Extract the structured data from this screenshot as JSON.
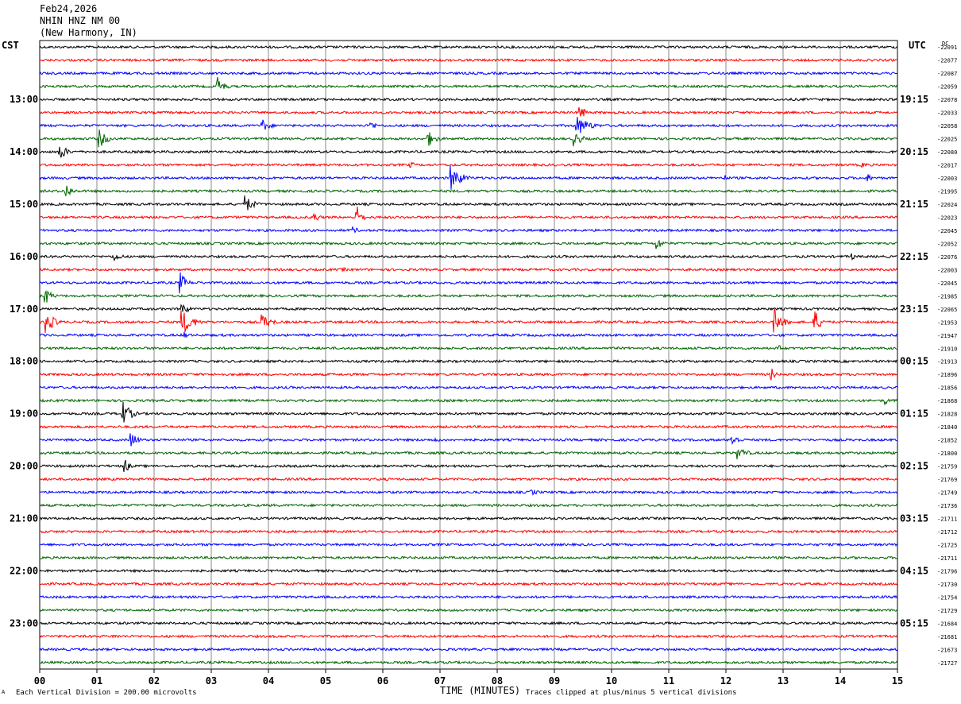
{
  "header": {
    "date": "Feb24,2026",
    "station": "NHIN HNZ NM 00",
    "location": "(New Harmony, IN)"
  },
  "left_tz": "CST",
  "right_tz": "UTC",
  "dc_label": "DC",
  "footer": {
    "scale_prefix": "Each Vertical Division = ",
    "scale_value": "200.00 microvolts",
    "xlabel": "TIME (MINUTES)",
    "clip_note": "Traces clipped at plus/minus 5 vertical divisions",
    "corner_mark": "A"
  },
  "colors": {
    "black": "#000000",
    "red": "#ff0000",
    "blue": "#0000ff",
    "green": "#006400"
  },
  "chart_data": {
    "type": "line",
    "title": "NHIN HNZ NM 00",
    "xlabel": "TIME (MINUTES)",
    "xlim": [
      0,
      15
    ],
    "x_ticks": [
      "00",
      "01",
      "02",
      "03",
      "04",
      "05",
      "06",
      "07",
      "08",
      "09",
      "10",
      "11",
      "12",
      "13",
      "14",
      "15"
    ],
    "trace_count": 48,
    "color_cycle": [
      "black",
      "red",
      "blue",
      "green"
    ],
    "left_hour_labels": [
      "13:00",
      "14:00",
      "15:00",
      "16:00",
      "17:00",
      "18:00",
      "19:00",
      "20:00",
      "21:00",
      "22:00",
      "23:00"
    ],
    "right_hour_labels": [
      "19:15",
      "20:15",
      "21:15",
      "22:15",
      "23:15",
      "00:15",
      "01:15",
      "02:15",
      "03:15",
      "04:15",
      "05:15"
    ],
    "dc_offsets": [
      "-22091",
      "-22077",
      "-22087",
      "-22059",
      "-22078",
      "-22033",
      "-22058",
      "-22025",
      "-22080",
      "-22017",
      "-22003",
      "-21995",
      "-22024",
      "-22023",
      "-22045",
      "-22052",
      "-22076",
      "-22003",
      "-22045",
      "-21985",
      "-22065",
      "-21953",
      "-21947",
      "-21910",
      "-21913",
      "-21896",
      "-21856",
      "-21868",
      "-21828",
      "-21840",
      "-21852",
      "-21800",
      "-21759",
      "-21769",
      "-21749",
      "-21736",
      "-21711",
      "-21712",
      "-21725",
      "-21711",
      "-21796",
      "-21730",
      "-21754",
      "-21729",
      "-21684",
      "-21681",
      "-21673",
      "-21727"
    ],
    "events": [
      {
        "trace": 3,
        "minute": 3.1,
        "amp": 4.0,
        "dur": 0.35
      },
      {
        "trace": 4,
        "minute": 7.0,
        "amp": 1.2,
        "dur": 0.15
      },
      {
        "trace": 5,
        "minute": 9.45,
        "amp": 3.5,
        "dur": 0.25
      },
      {
        "trace": 6,
        "minute": 3.9,
        "amp": 2.5,
        "dur": 0.4
      },
      {
        "trace": 6,
        "minute": 5.8,
        "amp": 1.8,
        "dur": 0.3
      },
      {
        "trace": 6,
        "minute": 9.4,
        "amp": 4.0,
        "dur": 0.6
      },
      {
        "trace": 7,
        "minute": 1.05,
        "amp": 3.5,
        "dur": 0.4
      },
      {
        "trace": 7,
        "minute": 6.8,
        "amp": 3.0,
        "dur": 0.4
      },
      {
        "trace": 7,
        "minute": 9.35,
        "amp": 3.0,
        "dur": 0.4
      },
      {
        "trace": 8,
        "minute": 0.35,
        "amp": 3.5,
        "dur": 0.35
      },
      {
        "trace": 9,
        "minute": 6.5,
        "amp": 1.5,
        "dur": 0.15
      },
      {
        "trace": 9,
        "minute": 14.4,
        "amp": 1.2,
        "dur": 0.3
      },
      {
        "trace": 10,
        "minute": 7.2,
        "amp": 5.0,
        "dur": 0.5
      },
      {
        "trace": 10,
        "minute": 12.0,
        "amp": 1.2,
        "dur": 0.2
      },
      {
        "trace": 10,
        "minute": 14.5,
        "amp": 1.6,
        "dur": 0.2
      },
      {
        "trace": 11,
        "minute": 0.45,
        "amp": 3.5,
        "dur": 0.3
      },
      {
        "trace": 12,
        "minute": 3.6,
        "amp": 3.5,
        "dur": 0.4
      },
      {
        "trace": 13,
        "minute": 4.8,
        "amp": 2.5,
        "dur": 0.25
      },
      {
        "trace": 13,
        "minute": 5.55,
        "amp": 4.5,
        "dur": 0.25
      },
      {
        "trace": 14,
        "minute": 5.5,
        "amp": 2.0,
        "dur": 0.15
      },
      {
        "trace": 15,
        "minute": 10.8,
        "amp": 2.5,
        "dur": 0.3
      },
      {
        "trace": 16,
        "minute": 1.3,
        "amp": 2.0,
        "dur": 0.4
      },
      {
        "trace": 16,
        "minute": 14.2,
        "amp": 1.5,
        "dur": 0.2
      },
      {
        "trace": 17,
        "minute": 5.3,
        "amp": 1.2,
        "dur": 0.2
      },
      {
        "trace": 18,
        "minute": 2.45,
        "amp": 4.5,
        "dur": 0.3
      },
      {
        "trace": 19,
        "minute": 0.1,
        "amp": 3.5,
        "dur": 0.3
      },
      {
        "trace": 20,
        "minute": 2.5,
        "amp": 2.5,
        "dur": 0.3
      },
      {
        "trace": 21,
        "minute": 0.1,
        "amp": 5.0,
        "dur": 0.4
      },
      {
        "trace": 21,
        "minute": 2.5,
        "amp": 5.0,
        "dur": 0.5
      },
      {
        "trace": 21,
        "minute": 3.9,
        "amp": 3.0,
        "dur": 0.5
      },
      {
        "trace": 21,
        "minute": 12.85,
        "amp": 5.0,
        "dur": 0.4
      },
      {
        "trace": 21,
        "minute": 13.55,
        "amp": 5.0,
        "dur": 0.3
      },
      {
        "trace": 22,
        "minute": 2.55,
        "amp": 2.0,
        "dur": 0.2
      },
      {
        "trace": 23,
        "minute": 12.9,
        "amp": 1.5,
        "dur": 0.4
      },
      {
        "trace": 25,
        "minute": 12.8,
        "amp": 2.5,
        "dur": 0.2
      },
      {
        "trace": 27,
        "minute": 14.8,
        "amp": 1.5,
        "dur": 0.2
      },
      {
        "trace": 28,
        "minute": 1.45,
        "amp": 5.0,
        "dur": 0.4
      },
      {
        "trace": 30,
        "minute": 1.6,
        "amp": 3.5,
        "dur": 0.3
      },
      {
        "trace": 30,
        "minute": 6.9,
        "amp": 1.5,
        "dur": 0.2
      },
      {
        "trace": 30,
        "minute": 12.1,
        "amp": 2.5,
        "dur": 0.4
      },
      {
        "trace": 31,
        "minute": 12.2,
        "amp": 2.5,
        "dur": 0.5
      },
      {
        "trace": 32,
        "minute": 1.5,
        "amp": 3.0,
        "dur": 0.2
      },
      {
        "trace": 34,
        "minute": 8.6,
        "amp": 1.2,
        "dur": 0.5
      },
      {
        "trace": 45,
        "minute": 1.3,
        "amp": 1.0,
        "dur": 0.4
      }
    ]
  }
}
